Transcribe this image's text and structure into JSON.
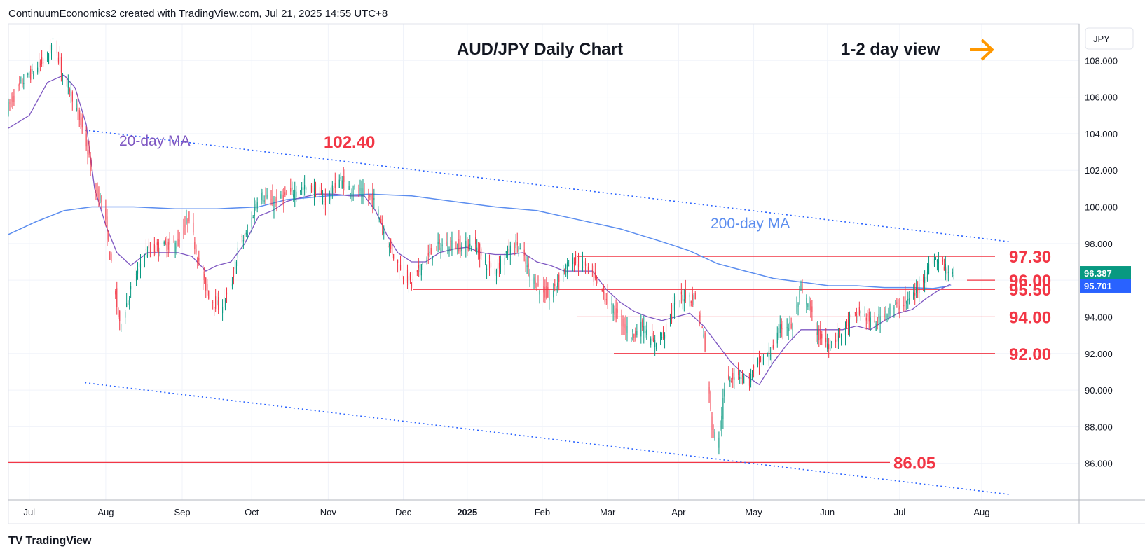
{
  "header": {
    "attribution": "ContinuumEconomics2 created with TradingView.com, Jul 21, 2025 14:55 UTC+8"
  },
  "footer": {
    "brand": "TradingView",
    "logo_glyph": "TV"
  },
  "currency_label": "JPY",
  "colors": {
    "bull": "#089981",
    "bear": "#f23645",
    "ma20": "#7e57c2",
    "ma200": "#5b8def",
    "channel": "#2962ff",
    "level_line": "#f23645",
    "arrow": "#ff9800",
    "grid": "#f0f3fa"
  },
  "chart_data": {
    "type": "candlestick",
    "title": "AUD/JPY Daily Chart",
    "subtitle": "1-2 day view",
    "view_arrow": "right-arrow",
    "ylim": [
      84,
      110
    ],
    "y_ticks": [
      "86.000",
      "88.000",
      "90.000",
      "92.000",
      "94.000",
      "96.000",
      "98.000",
      "100.000",
      "102.000",
      "104.000",
      "106.000",
      "108.000"
    ],
    "x_ticks": [
      "Jul",
      "Aug",
      "Sep",
      "Oct",
      "Nov",
      "Dec",
      "2025",
      "Feb",
      "Mar",
      "Apr",
      "May",
      "Jun",
      "Jul",
      "Aug"
    ],
    "price_labels": [
      {
        "label": "96.387",
        "value": 96.387,
        "color": "#089981"
      },
      {
        "label": "95.701",
        "value": 95.701,
        "color": "#2962ff"
      }
    ],
    "levels": [
      {
        "label": "97.30",
        "value": 97.3,
        "from": "Feb"
      },
      {
        "label": "96.00",
        "value": 96.0,
        "from": "Jul"
      },
      {
        "label": "95.50",
        "value": 95.5,
        "from": "Dec"
      },
      {
        "label": "94.00",
        "value": 94.0,
        "from": "Feb"
      },
      {
        "label": "92.00",
        "value": 92.0,
        "from": "Mar"
      },
      {
        "label": "86.05",
        "value": 86.05,
        "from": "Jul"
      }
    ],
    "annotations": [
      {
        "text": "102.40",
        "value": 102.4
      },
      {
        "text": "20-day MA",
        "series": "ma20"
      },
      {
        "text": "200-day MA",
        "series": "ma200"
      }
    ],
    "price_path": [
      [
        0,
        105.5
      ],
      [
        10,
        106.8
      ],
      [
        20,
        107.5
      ],
      [
        28,
        108.2
      ],
      [
        33,
        109.2
      ],
      [
        38,
        107.5
      ],
      [
        45,
        106.3
      ],
      [
        55,
        103.8
      ],
      [
        62,
        101.0
      ],
      [
        68,
        100.2
      ],
      [
        75,
        96.2
      ],
      [
        80,
        93.5
      ],
      [
        88,
        95.5
      ],
      [
        98,
        97.5
      ],
      [
        110,
        97.8
      ],
      [
        122,
        98.0
      ],
      [
        130,
        99.5
      ],
      [
        138,
        96.5
      ],
      [
        145,
        95.0
      ],
      [
        152,
        94.5
      ],
      [
        160,
        95.5
      ],
      [
        166,
        98.0
      ],
      [
        172,
        98.5
      ],
      [
        180,
        100.8
      ],
      [
        190,
        100.2
      ],
      [
        198,
        100.5
      ],
      [
        208,
        101.0
      ],
      [
        218,
        101.0
      ],
      [
        228,
        100.3
      ],
      [
        238,
        101.5
      ],
      [
        246,
        101.0
      ],
      [
        256,
        100.7
      ],
      [
        264,
        100.2
      ],
      [
        272,
        98.2
      ],
      [
        282,
        96.5
      ],
      [
        290,
        95.8
      ],
      [
        298,
        97.0
      ],
      [
        308,
        97.8
      ],
      [
        318,
        98.0
      ],
      [
        326,
        97.8
      ],
      [
        335,
        98.0
      ],
      [
        342,
        97.0
      ],
      [
        350,
        96.5
      ],
      [
        358,
        97.5
      ],
      [
        366,
        98.0
      ],
      [
        374,
        96.5
      ],
      [
        382,
        95.5
      ],
      [
        390,
        95.0
      ],
      [
        398,
        96.5
      ],
      [
        406,
        97.0
      ],
      [
        414,
        96.8
      ],
      [
        422,
        96.0
      ],
      [
        430,
        95.0
      ],
      [
        440,
        93.8
      ],
      [
        448,
        93.0
      ],
      [
        456,
        93.5
      ],
      [
        464,
        92.5
      ],
      [
        472,
        93.2
      ],
      [
        478,
        94.5
      ],
      [
        486,
        95.2
      ],
      [
        494,
        95.0
      ],
      [
        500,
        93.0
      ],
      [
        506,
        88.0
      ],
      [
        510,
        87.0
      ],
      [
        516,
        90.5
      ],
      [
        524,
        91.0
      ],
      [
        532,
        90.5
      ],
      [
        540,
        91.5
      ],
      [
        548,
        92.0
      ],
      [
        556,
        93.5
      ],
      [
        564,
        93.5
      ],
      [
        570,
        95.5
      ],
      [
        576,
        94.5
      ],
      [
        582,
        93.0
      ],
      [
        590,
        92.5
      ],
      [
        598,
        93.0
      ],
      [
        606,
        93.8
      ],
      [
        614,
        94.3
      ],
      [
        622,
        93.5
      ],
      [
        630,
        94.3
      ],
      [
        638,
        94.5
      ],
      [
        646,
        94.8
      ],
      [
        654,
        95.5
      ],
      [
        660,
        96.5
      ],
      [
        666,
        97.2
      ],
      [
        672,
        96.8
      ],
      [
        676,
        96.5
      ],
      [
        680,
        96.39
      ]
    ],
    "ma20_path": [
      [
        0,
        104.3
      ],
      [
        15,
        105.0
      ],
      [
        28,
        106.8
      ],
      [
        40,
        107.2
      ],
      [
        48,
        106.5
      ],
      [
        56,
        104.5
      ],
      [
        62,
        101.0
      ],
      [
        70,
        99.0
      ],
      [
        78,
        97.5
      ],
      [
        88,
        96.8
      ],
      [
        100,
        97.5
      ],
      [
        110,
        97.5
      ],
      [
        122,
        97.5
      ],
      [
        132,
        97.3
      ],
      [
        142,
        96.5
      ],
      [
        150,
        96.8
      ],
      [
        160,
        97.0
      ],
      [
        170,
        98.0
      ],
      [
        180,
        99.5
      ],
      [
        190,
        99.8
      ],
      [
        200,
        100.3
      ],
      [
        210,
        100.5
      ],
      [
        222,
        100.7
      ],
      [
        234,
        100.7
      ],
      [
        246,
        100.6
      ],
      [
        256,
        100.6
      ],
      [
        264,
        99.8
      ],
      [
        272,
        98.5
      ],
      [
        280,
        97.5
      ],
      [
        290,
        97.0
      ],
      [
        300,
        97.0
      ],
      [
        310,
        97.5
      ],
      [
        320,
        97.7
      ],
      [
        330,
        97.8
      ],
      [
        340,
        97.5
      ],
      [
        350,
        97.4
      ],
      [
        360,
        97.4
      ],
      [
        370,
        97.5
      ],
      [
        380,
        97.0
      ],
      [
        390,
        96.8
      ],
      [
        400,
        96.5
      ],
      [
        410,
        96.5
      ],
      [
        420,
        96.5
      ],
      [
        430,
        95.5
      ],
      [
        440,
        94.8
      ],
      [
        450,
        94.3
      ],
      [
        460,
        94.0
      ],
      [
        470,
        93.8
      ],
      [
        480,
        94.0
      ],
      [
        490,
        94.2
      ],
      [
        500,
        93.5
      ],
      [
        510,
        92.5
      ],
      [
        520,
        91.5
      ],
      [
        530,
        90.8
      ],
      [
        540,
        90.3
      ],
      [
        550,
        91.5
      ],
      [
        560,
        92.5
      ],
      [
        570,
        93.3
      ],
      [
        580,
        93.3
      ],
      [
        590,
        93.3
      ],
      [
        600,
        93.3
      ],
      [
        610,
        93.5
      ],
      [
        620,
        93.3
      ],
      [
        630,
        93.8
      ],
      [
        640,
        94.2
      ],
      [
        650,
        94.4
      ],
      [
        660,
        95.0
      ],
      [
        670,
        95.5
      ],
      [
        678,
        95.8
      ]
    ],
    "ma200_path": [
      [
        0,
        98.5
      ],
      [
        20,
        99.2
      ],
      [
        40,
        99.8
      ],
      [
        60,
        100.0
      ],
      [
        90,
        100.0
      ],
      [
        120,
        99.9
      ],
      [
        150,
        99.9
      ],
      [
        180,
        100.0
      ],
      [
        200,
        100.4
      ],
      [
        230,
        100.6
      ],
      [
        260,
        100.7
      ],
      [
        290,
        100.6
      ],
      [
        320,
        100.3
      ],
      [
        350,
        100.0
      ],
      [
        380,
        99.8
      ],
      [
        410,
        99.3
      ],
      [
        440,
        98.8
      ],
      [
        470,
        98.1
      ],
      [
        490,
        97.6
      ],
      [
        510,
        96.9
      ],
      [
        530,
        96.5
      ],
      [
        550,
        96.1
      ],
      [
        570,
        95.9
      ],
      [
        590,
        95.7
      ],
      [
        610,
        95.7
      ],
      [
        630,
        95.6
      ],
      [
        650,
        95.6
      ],
      [
        665,
        95.55
      ],
      [
        678,
        95.7
      ]
    ],
    "channel_upper": [
      [
        55,
        104.2
      ],
      [
        720,
        98.1
      ]
    ],
    "channel_lower": [
      [
        55,
        90.4
      ],
      [
        720,
        84.3
      ]
    ]
  }
}
